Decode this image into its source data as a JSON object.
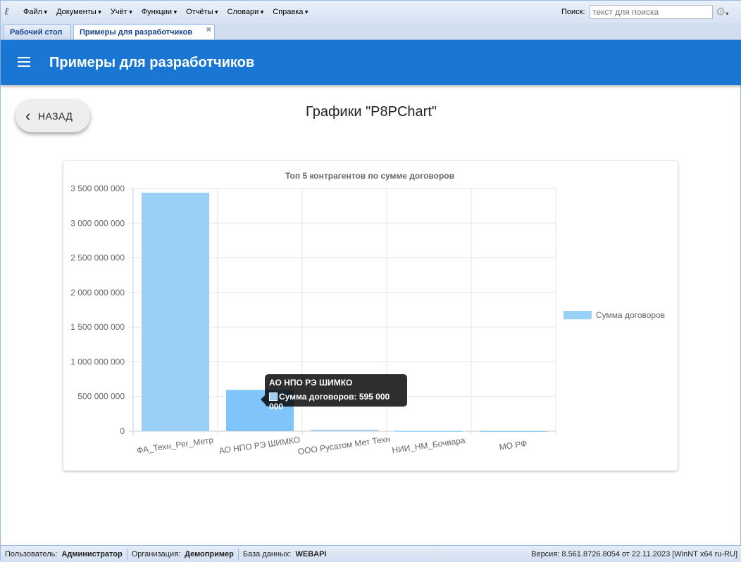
{
  "menubar": {
    "items": [
      "Файл",
      "Документы",
      "Учёт",
      "Функции",
      "Отчёты",
      "Словари",
      "Справка"
    ],
    "search_label": "Поиск:",
    "search_placeholder": "текст для поиска",
    "settings_icon": "gear-icon"
  },
  "tabs": [
    {
      "label": "Рабочий стол",
      "active": false
    },
    {
      "label": "Примеры для разработчиков",
      "active": true,
      "closable": true
    }
  ],
  "appbar": {
    "title": "Примеры для разработчиков",
    "menu_icon": "hamburger-icon"
  },
  "back_button": {
    "label": "НАЗАД",
    "icon": "chevron-left-icon"
  },
  "page_title": "Графики \"P8PChart\"",
  "tooltip": {
    "title": "АО НПО РЭ ШИМКО",
    "line": "Сумма договоров: 595 000 000"
  },
  "chart_data": {
    "type": "bar",
    "title": "Топ 5 контрагентов по сумме договоров",
    "categories": [
      "ФА_Техн_Рег_Метр",
      "АО НПО РЭ ШИМКО",
      "ООО Русатом Мет Техн",
      "НИИ_НМ_Бочвара",
      "МО РФ"
    ],
    "series": [
      {
        "name": "Сумма договоров",
        "values": [
          3440000000,
          595000000,
          20000000,
          6000000,
          4000000
        ],
        "color": "#9ad0f5",
        "highlight_color": "#7fc5fb"
      }
    ],
    "ylim": [
      0,
      3500000000
    ],
    "yticks": [
      "0",
      "500 000 000",
      "1 000 000 000",
      "1 500 000 000",
      "2 000 000 000",
      "2 500 000 000",
      "3 000 000 000",
      "3 500 000 000"
    ],
    "grid": true,
    "legend": "right"
  },
  "status": {
    "user_label": "Пользователь:",
    "user": "Администратор",
    "org_label": "Организация:",
    "org": "Демопример",
    "db_label": "База данных:",
    "db": "WEBAPI",
    "version": "Версия: 8.561.8726.8054 от 22.11.2023 [WinNT x64 ru-RU]"
  }
}
